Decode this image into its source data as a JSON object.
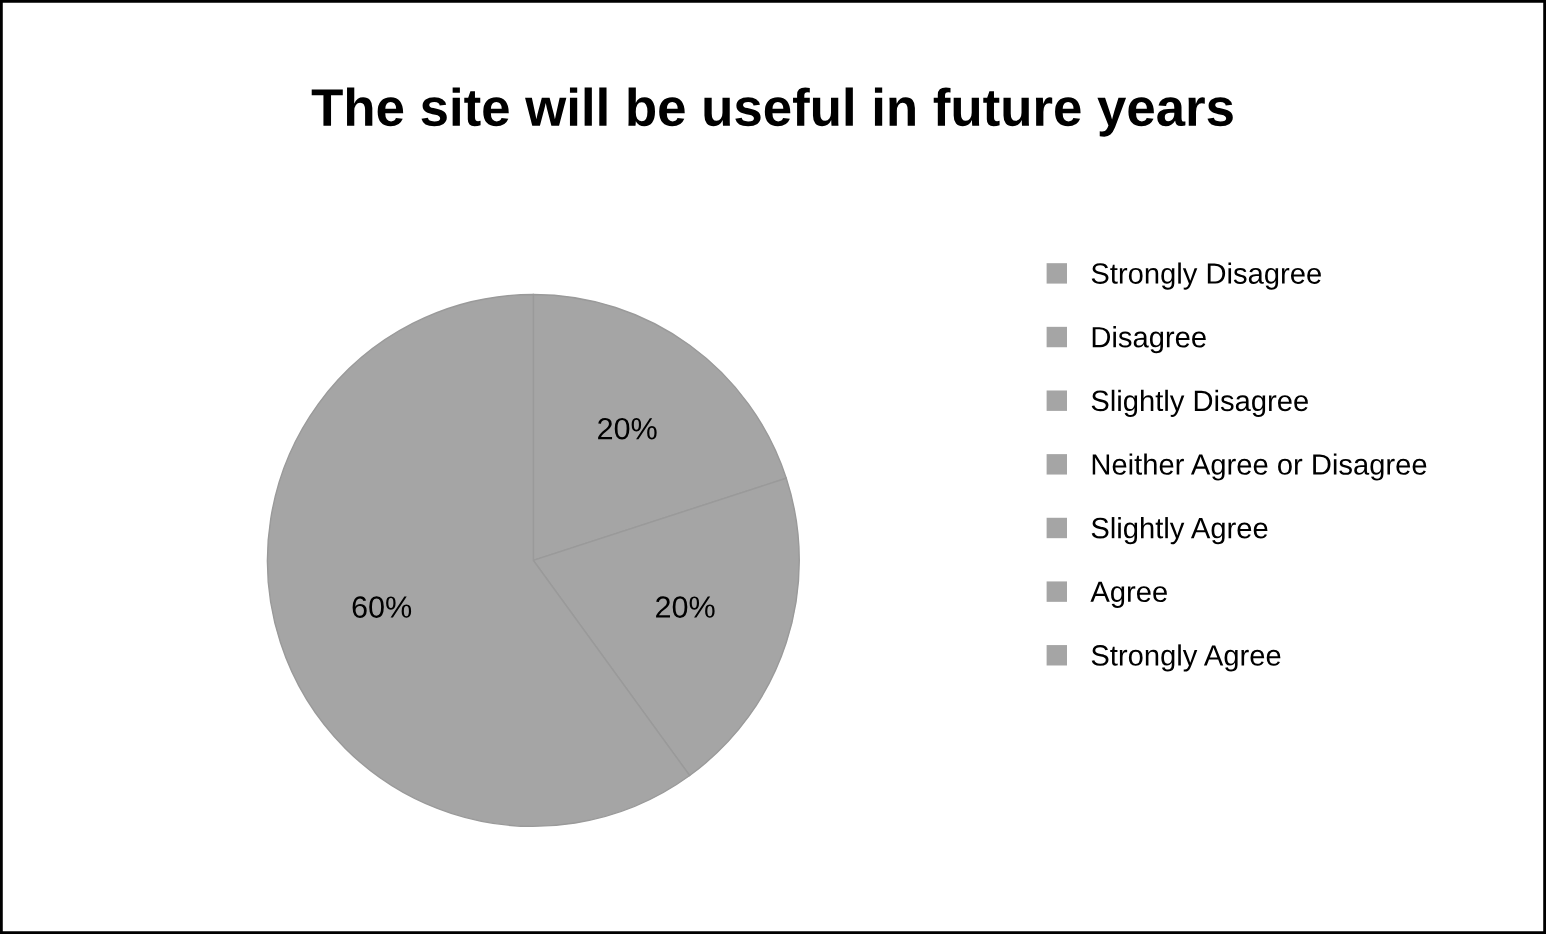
{
  "chart_data": {
    "type": "pie",
    "title": "The site will be useful in future years",
    "categories": [
      "Strongly Disagree",
      "Disagree",
      "Slightly Disagree",
      "Neither Agree or Disagree",
      "Slightly Agree",
      "Agree",
      "Strongly Agree"
    ],
    "values": [
      0,
      0,
      0,
      0,
      20,
      20,
      60
    ],
    "colors": [
      "#a5a5a5",
      "#a5a5a5",
      "#a5a5a5",
      "#a5a5a5",
      "#a5a5a5",
      "#a5a5a5",
      "#a5a5a5"
    ],
    "value_labels": [
      null,
      null,
      null,
      null,
      "20%",
      "20%",
      "60%"
    ],
    "legend": "right"
  }
}
